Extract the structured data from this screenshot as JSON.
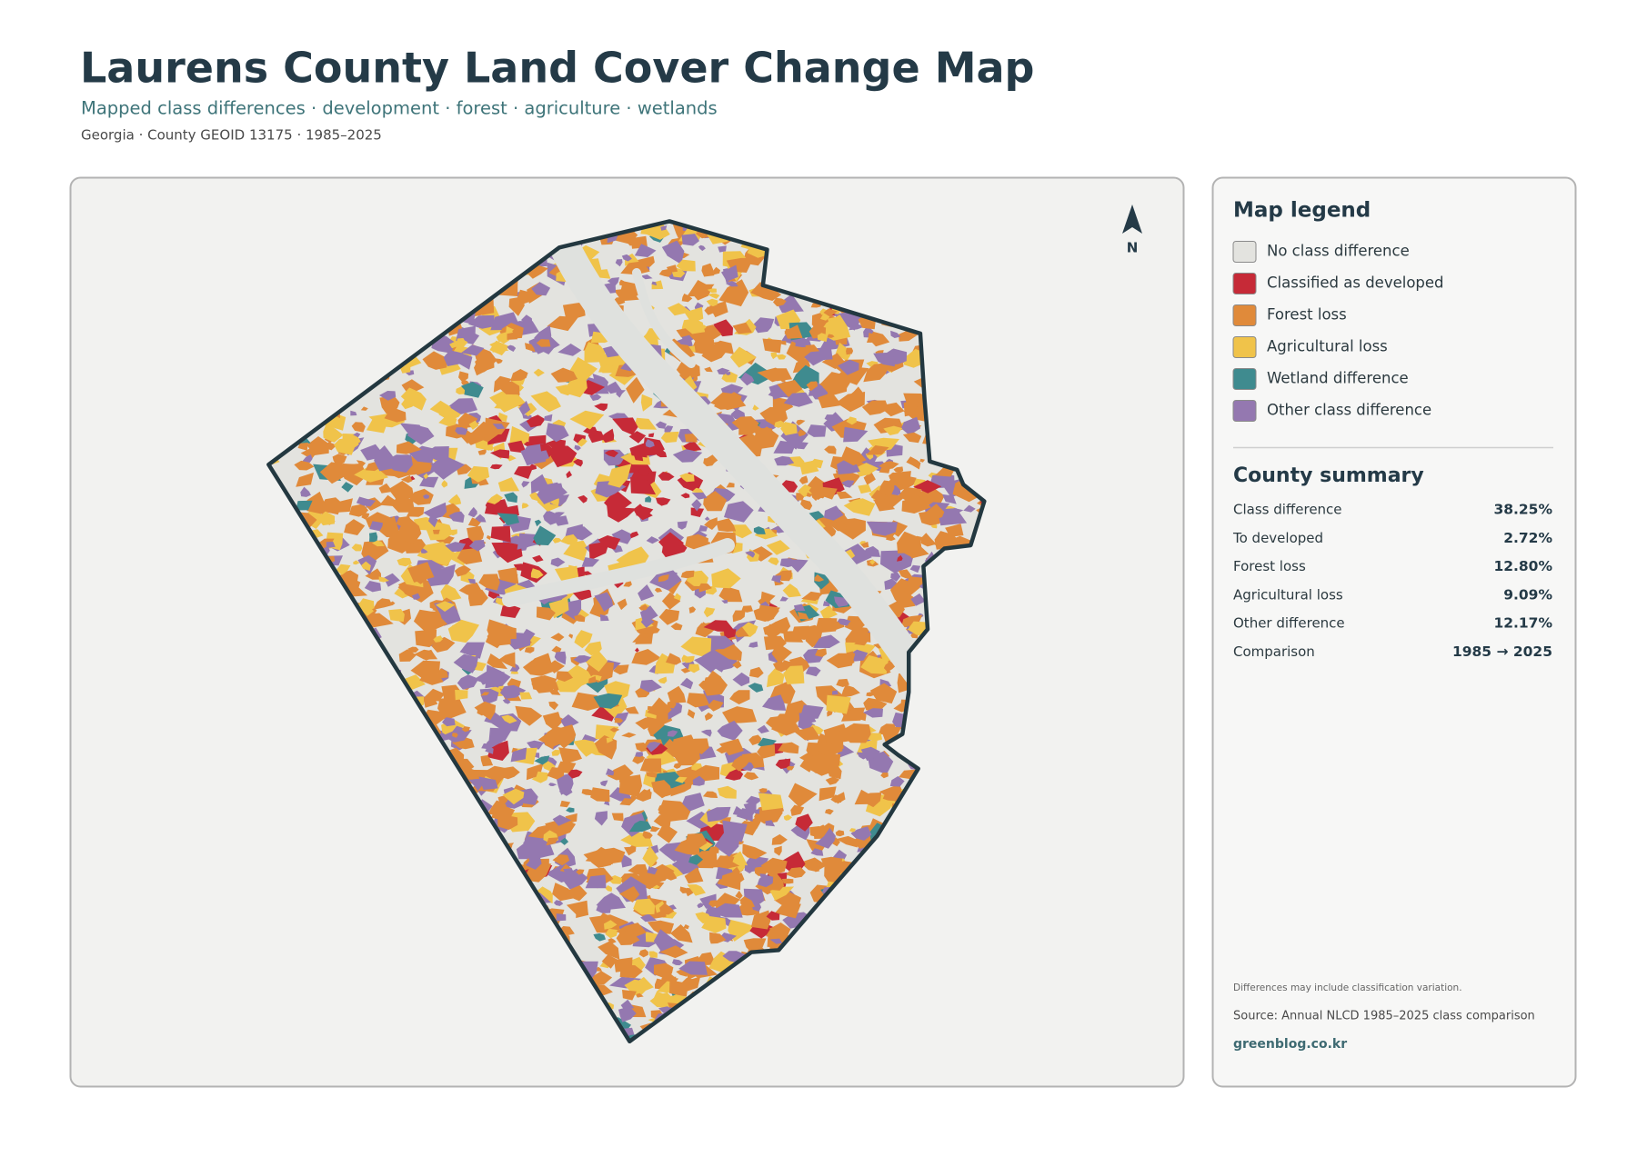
{
  "header": {
    "title": "Laurens County Land Cover Change Map",
    "subtitle": "Mapped class differences · development · forest · agriculture · wetlands",
    "meta": "Georgia · County GEOID 13175 · 1985–2025"
  },
  "map": {
    "north_label": "N"
  },
  "legend": {
    "title": "Map legend",
    "items": [
      {
        "label": "No class difference",
        "color": "#e3e3df"
      },
      {
        "label": "Classified as developed",
        "color": "#c62a37"
      },
      {
        "label": "Forest loss",
        "color": "#e08a3a"
      },
      {
        "label": "Agricultural loss",
        "color": "#f0c34a"
      },
      {
        "label": "Wetland difference",
        "color": "#3f8b8f"
      },
      {
        "label": "Other class difference",
        "color": "#9478b0"
      }
    ]
  },
  "summary": {
    "title": "County summary",
    "rows": [
      {
        "label": "Class difference",
        "value": "38.25%"
      },
      {
        "label": "To developed",
        "value": "2.72%"
      },
      {
        "label": "Forest loss",
        "value": "12.80%"
      },
      {
        "label": "Agricultural loss",
        "value": "9.09%"
      },
      {
        "label": "Other difference",
        "value": "12.17%"
      },
      {
        "label": "Comparison",
        "value": "1985 → 2025"
      }
    ]
  },
  "footer": {
    "note": "Differences may include classification variation.",
    "source": "Source: Annual NLCD 1985–2025 class comparison",
    "credit": "greenblog.co.kr"
  }
}
